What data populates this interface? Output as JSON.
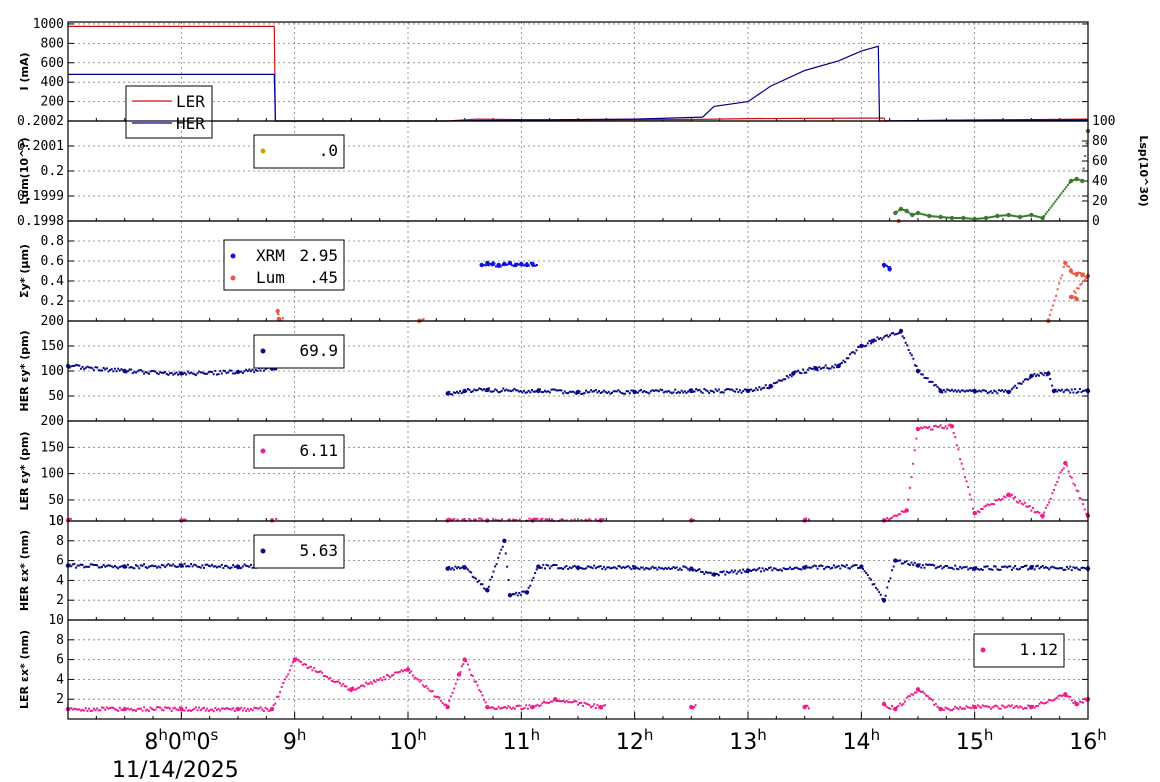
{
  "chart_data": {
    "type": "scatter",
    "x_axis": {
      "unit": "hour",
      "range": [
        7.0,
        16.0
      ],
      "tick_labels": [
        {
          "x": 8,
          "text": "8",
          "sup": "h",
          "extra": "0",
          "extra_sup": "m",
          "extra2": "0",
          "extra2_sup": "s"
        },
        {
          "x": 9,
          "text": "9",
          "sup": "h"
        },
        {
          "x": 10,
          "text": "10",
          "sup": "h"
        },
        {
          "x": 11,
          "text": "11",
          "sup": "h"
        },
        {
          "x": 12,
          "text": "12",
          "sup": "h"
        },
        {
          "x": 13,
          "text": "13",
          "sup": "h"
        },
        {
          "x": 14,
          "text": "14",
          "sup": "h"
        },
        {
          "x": 15,
          "text": "15",
          "sup": "h"
        },
        {
          "x": 16,
          "text": "16",
          "sup": "h"
        }
      ],
      "date_label": "11/14/2025"
    },
    "panels": [
      {
        "id": "current",
        "ylabel": "I (mA)",
        "ylim": [
          0,
          1020
        ],
        "yticks": [
          200,
          400,
          600,
          800,
          1000
        ],
        "ytick_labels": [
          "200",
          "400",
          "600",
          "800",
          "1000"
        ],
        "series": [
          {
            "name": "LER",
            "color": "#d01010",
            "kind": "line",
            "x": [
              7.0,
              8.82,
              8.83,
              10.35,
              10.6,
              11.2,
              12.5,
              13.0,
              14.0,
              14.2,
              14.21,
              16.0
            ],
            "y": [
              975,
              975,
              0,
              0,
              20,
              10,
              15,
              25,
              30,
              30,
              0,
              20
            ]
          },
          {
            "name": "HER",
            "color": "#000090",
            "kind": "line",
            "x": [
              7.0,
              8.82,
              8.83,
              10.35,
              11.0,
              12.0,
              12.6,
              12.7,
              13.0,
              13.2,
              13.5,
              13.8,
              14.0,
              14.15,
              14.16,
              15.0,
              16.0
            ],
            "y": [
              480,
              480,
              0,
              0,
              10,
              20,
              40,
              150,
              200,
              360,
              520,
              620,
              720,
              770,
              0,
              10,
              10
            ]
          }
        ],
        "legend": {
          "entries": [
            "LER",
            "HER"
          ]
        }
      },
      {
        "id": "lum",
        "ylabel": "Lum(10^?)",
        "ylim": [
          0.1998,
          0.2002
        ],
        "yticks": [
          0.1998,
          0.1999,
          0.2,
          0.2001,
          0.2002
        ],
        "ytick_labels": [
          "0.1998",
          "0.1999",
          "0.2",
          "0.2001",
          "0.2002"
        ],
        "y2label": "Lsp(10^30)",
        "y2lim": [
          0,
          100
        ],
        "y2ticks": [
          0,
          20,
          40,
          60,
          80,
          100
        ],
        "y2tick_labels": [
          "0",
          "20",
          "40",
          "60",
          "80",
          "100"
        ],
        "series": [
          {
            "name": "Lsp",
            "color": "#3d7a2e",
            "kind": "scatter-y2",
            "x": [
              14.3,
              14.35,
              14.4,
              14.45,
              14.5,
              14.6,
              14.7,
              14.8,
              14.9,
              15.0,
              15.1,
              15.2,
              15.3,
              15.4,
              15.5,
              15.6,
              15.85,
              15.9,
              15.95,
              16.0
            ],
            "y": [
              8,
              12,
              10,
              6,
              8,
              5,
              4,
              3,
              3,
              2,
              3,
              5,
              6,
              4,
              6,
              3,
              40,
              42,
              40,
              90
            ]
          },
          {
            "name": "Lum",
            "color": "#e85a40",
            "kind": "scatter-y2",
            "x": [
              14.33
            ],
            "y": [
              -4
            ]
          }
        ],
        "legend": {
          "entries": [
            {
              "marker_color": "#d4a000",
              "value": ".0"
            }
          ]
        }
      },
      {
        "id": "sigma",
        "ylabel": "Σy* (μm)",
        "ylim": [
          0,
          1.0
        ],
        "yticks": [
          0.2,
          0.4,
          0.6,
          0.8
        ],
        "ytick_labels": [
          "0.2",
          "0.4",
          "0.6",
          "0.8"
        ],
        "series": [
          {
            "name": "XRM",
            "color": "#1010e0",
            "kind": "scatter",
            "x": [
              10.65,
              10.7,
              10.75,
              10.8,
              10.85,
              10.9,
              10.95,
              11.0,
              11.05,
              11.1,
              14.2,
              14.25
            ],
            "y": [
              0.56,
              0.58,
              0.57,
              0.56,
              0.57,
              0.58,
              0.56,
              0.57,
              0.56,
              0.57,
              0.56,
              0.52
            ]
          },
          {
            "name": "Lum",
            "color": "#e85a40",
            "kind": "scatter",
            "x": [
              8.85,
              8.86,
              10.1,
              15.65,
              15.8,
              15.85,
              15.9,
              15.95,
              16.0,
              15.85,
              15.9
            ],
            "y": [
              0.1,
              0.02,
              0.0,
              0.0,
              0.58,
              0.5,
              0.47,
              0.46,
              0.45,
              0.24,
              0.22
            ]
          }
        ],
        "legend": {
          "entries": [
            {
              "marker_color": "#1010e0",
              "label": "XRM",
              "value": "2.95"
            },
            {
              "marker_color": "#e85a40",
              "label": "Lum",
              "value": ".45"
            }
          ]
        }
      },
      {
        "id": "her_eps_y",
        "ylabel": "HER εy* (pm)",
        "ylim": [
          0,
          200
        ],
        "yticks": [
          50,
          100,
          150,
          200
        ],
        "ytick_labels": [
          "50",
          "100",
          "150",
          "200"
        ],
        "series": [
          {
            "name": "HER εy*",
            "color": "#0a0a88",
            "kind": "scatter",
            "x": [
              7.0,
              7.5,
              8.0,
              8.5,
              8.8,
              10.35,
              10.5,
              10.7,
              11.15,
              11.5,
              12.0,
              12.5,
              13.0,
              13.2,
              13.4,
              13.6,
              13.8,
              14.0,
              14.1,
              14.35,
              14.5,
              14.7,
              15.0,
              15.3,
              15.5,
              15.65,
              15.7,
              16.0
            ],
            "y": [
              110,
              100,
              95,
              98,
              105,
              55,
              60,
              62,
              60,
              58,
              58,
              60,
              60,
              70,
              95,
              105,
              110,
              150,
              160,
              180,
              100,
              60,
              60,
              58,
              90,
              95,
              60,
              60
            ]
          }
        ],
        "legend": {
          "entries": [
            {
              "marker_color": "#0a0a88",
              "value": "69.9"
            }
          ]
        }
      },
      {
        "id": "ler_eps_y",
        "ylabel": "LER εy* (pm)",
        "ylim": [
          10,
          200
        ],
        "yticks": [
          10,
          50,
          100,
          150,
          200
        ],
        "ytick_labels": [
          "10",
          "50",
          "100",
          "150",
          "200"
        ],
        "series": [
          {
            "name": "LER εy*",
            "color": "#ee1c8c",
            "kind": "scatter",
            "x": [
              7.0,
              8.0,
              8.8,
              10.35,
              10.7,
              11.1,
              11.7,
              12.5,
              13.5,
              14.2,
              14.4,
              14.5,
              14.8,
              15.0,
              15.3,
              15.6,
              15.8,
              16.0
            ],
            "y": [
              11,
              11,
              11,
              11,
              11,
              11,
              11,
              11,
              11,
              11,
              30,
              185,
              190,
              25,
              60,
              20,
              120,
              20
            ]
          }
        ],
        "legend": {
          "entries": [
            {
              "marker_color": "#ee1c8c",
              "value": "6.11"
            }
          ]
        }
      },
      {
        "id": "her_eps_x",
        "ylabel": "HER εx* (nm)",
        "ylim": [
          0,
          10
        ],
        "yticks": [
          2,
          4,
          6,
          8,
          10
        ],
        "ytick_labels": [
          "2",
          "4",
          "6",
          "8",
          "10"
        ],
        "series": [
          {
            "name": "HER εx*",
            "color": "#0a0a88",
            "kind": "scatter",
            "x": [
              7.0,
              7.5,
              8.0,
              8.5,
              8.8,
              10.35,
              10.5,
              10.7,
              10.85,
              10.9,
              11.05,
              11.15,
              11.5,
              12.0,
              12.5,
              12.7,
              13.0,
              13.5,
              14.0,
              14.2,
              14.3,
              14.5,
              15.0,
              15.5,
              16.0
            ],
            "y": [
              5.5,
              5.4,
              5.5,
              5.4,
              5.5,
              5.2,
              5.3,
              3.0,
              8.0,
              2.5,
              2.8,
              5.4,
              5.3,
              5.3,
              5.2,
              4.6,
              5.0,
              5.3,
              5.4,
              2.0,
              6.0,
              5.5,
              5.2,
              5.3,
              5.2
            ]
          }
        ],
        "legend": {
          "entries": [
            {
              "marker_color": "#0a0a88",
              "value": "5.63"
            }
          ]
        }
      },
      {
        "id": "ler_eps_x",
        "ylabel": "LER εx* (nm)",
        "ylim": [
          0,
          10
        ],
        "yticks": [
          2,
          4,
          6,
          8,
          10
        ],
        "ytick_labels": [
          "2",
          "4",
          "6",
          "8",
          "10"
        ],
        "series": [
          {
            "name": "LER εx*",
            "color": "#ee1c8c",
            "kind": "scatter",
            "x": [
              7.0,
              7.5,
              8.0,
              8.5,
              8.8,
              9.0,
              9.5,
              10.0,
              10.35,
              10.45,
              10.5,
              10.7,
              11.1,
              11.3,
              11.7,
              12.5,
              13.5,
              14.2,
              14.3,
              14.5,
              14.7,
              15.0,
              15.5,
              15.8,
              15.9,
              16.0
            ],
            "y": [
              1.0,
              1.0,
              1.0,
              1.0,
              1.0,
              6.0,
              3.0,
              5.0,
              1.2,
              4.5,
              6.0,
              1.2,
              1.2,
              2.0,
              1.2,
              1.2,
              1.2,
              1.5,
              1.0,
              3.0,
              1.0,
              1.2,
              1.2,
              2.5,
              1.5,
              2.0
            ]
          }
        ],
        "legend": {
          "entries": [
            {
              "marker_color": "#ee1c8c",
              "value": "1.12"
            }
          ]
        }
      }
    ],
    "grid": true
  }
}
